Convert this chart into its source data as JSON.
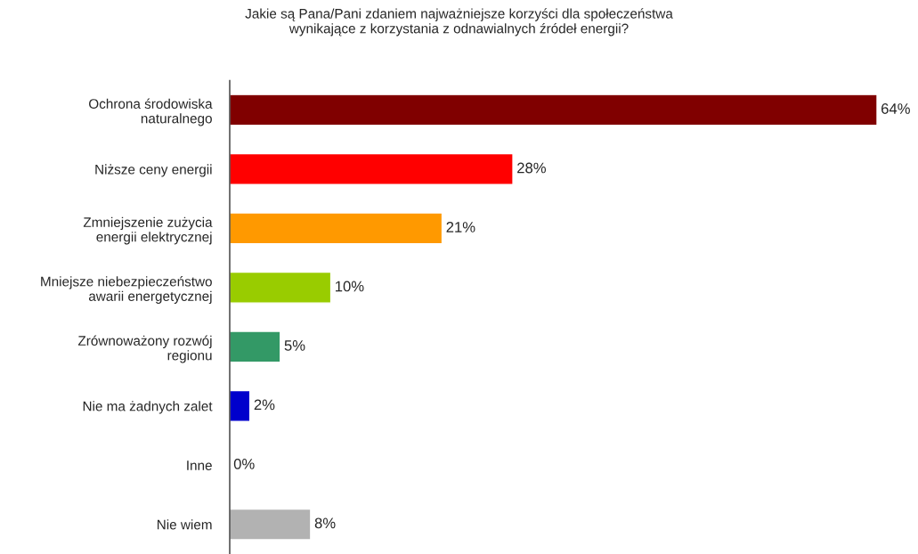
{
  "chart_data": {
    "type": "bar",
    "orientation": "horizontal",
    "title": "Jakie są Pana/Pani zdaniem najważniejsze korzyści dla społeczeństwa\nwynikające z korzystania z odnawialnych źródeł energii?",
    "categories": [
      "Ochrona środowiska\nnaturalnego",
      "Niższe ceny energii",
      "Zmniejszenie zużycia\nenergii elektrycznej",
      "Mniejsze niebezpieczeństwo\nawarii energetycznej",
      "Zrównoważony rozwój\nregionu",
      "Nie ma żadnych zalet",
      "Inne",
      "Nie wiem"
    ],
    "values": [
      64,
      28,
      21,
      10,
      5,
      2,
      0,
      8
    ],
    "value_labels": [
      "64%",
      "28%",
      "21%",
      "10%",
      "5%",
      "2%",
      "0%",
      "8%"
    ],
    "colors": [
      "#800000",
      "#ff0000",
      "#ff9900",
      "#99cc00",
      "#339966",
      "#0000cc",
      null,
      "#b2b2b2"
    ],
    "grid": false,
    "legend": false
  }
}
